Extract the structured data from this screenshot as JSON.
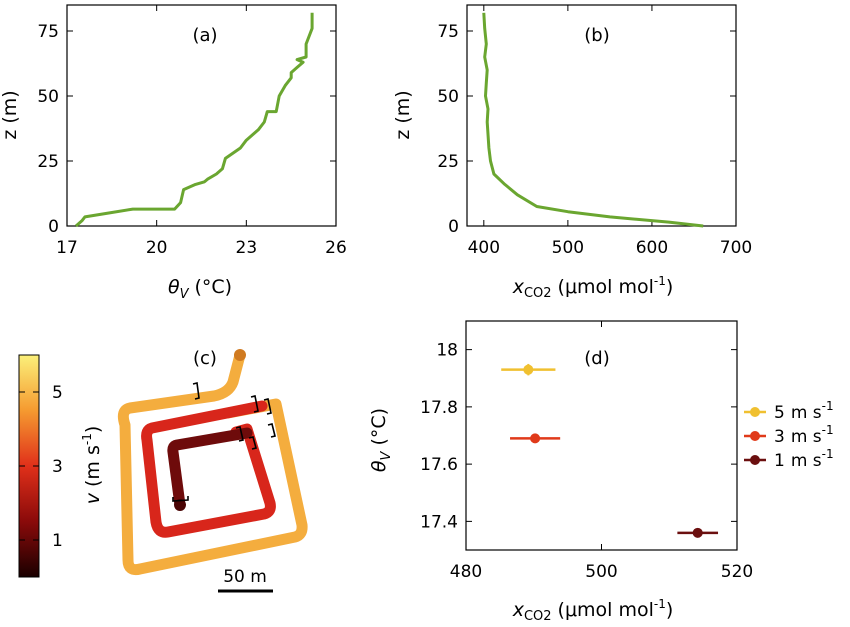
{
  "colors": {
    "profile": "#6aa630",
    "speed_5": "#f0c030",
    "speed_3": "#e03a1a",
    "speed_1": "#6b0f0f",
    "path_outer": "#f3a93c",
    "path_middle": "#d9261b",
    "path_inner": "#6a0a0a"
  },
  "chart_data": [
    {
      "panel": "(a)",
      "type": "line",
      "xlabel_sym": "θ",
      "xlabel_sub": "V",
      "xlabel_unit": "(°C)",
      "ylabel": "z (m)",
      "xlim": [
        17,
        26
      ],
      "ylim": [
        0,
        85
      ],
      "xticks": [
        "17",
        "20",
        "23",
        "26"
      ],
      "yticks": [
        "0",
        "25",
        "50",
        "75"
      ],
      "series": [
        {
          "x": [
            17.3,
            17.5,
            17.6,
            18.4,
            19.2,
            20.6,
            20.8,
            20.9,
            21.3,
            21.6,
            21.7,
            22.0,
            22.2,
            22.3,
            22.8,
            23.0,
            23.4,
            23.6,
            23.7,
            24.0,
            24.1,
            24.3,
            24.5,
            24.5,
            24.7,
            24.9,
            24.7,
            25.0,
            25.0,
            25.2,
            25.2
          ],
          "y": [
            0,
            2,
            3.5,
            5,
            6.5,
            6.5,
            9,
            14,
            16,
            17,
            18,
            20,
            22,
            26,
            30,
            33,
            37,
            40,
            44,
            44,
            50,
            54,
            57,
            59,
            61,
            63,
            64,
            65,
            70,
            76,
            82
          ]
        }
      ]
    },
    {
      "panel": "(b)",
      "type": "line",
      "xlabel_sym": "x",
      "xlabel_sub": "CO2",
      "xlabel_unit": "(μmol mol",
      "xlabel_sup": "-1",
      "xlabel_close": ")",
      "ylabel": "z (m)",
      "xlim": [
        380,
        700
      ],
      "ylim": [
        0,
        85
      ],
      "xticks": [
        "400",
        "500",
        "600",
        "700"
      ],
      "yticks": [
        "0",
        "25",
        "50",
        "75"
      ],
      "series": [
        {
          "x": [
            661,
            620,
            550,
            500,
            463,
            440,
            425,
            412,
            408,
            406,
            404,
            405,
            402,
            403,
            404,
            401,
            403,
            401,
            400
          ],
          "y": [
            0,
            1.5,
            3.5,
            5.5,
            7.5,
            12,
            16,
            20,
            25,
            30,
            40,
            45,
            50,
            55,
            60,
            65,
            70,
            76,
            82
          ]
        }
      ]
    },
    {
      "panel": "(c)",
      "type": "map",
      "colorbar_label_sym": "v",
      "colorbar_label_unit": "(m s",
      "colorbar_label_sup": "-1",
      "colorbar_label_close": ")",
      "colorbar_ticks": [
        "1",
        "3",
        "5"
      ],
      "colorbar_range": [
        0,
        6
      ],
      "scalebar": "50 m"
    },
    {
      "panel": "(d)",
      "type": "scatter",
      "xlabel_sym": "x",
      "xlabel_sub": "CO2",
      "xlabel_unit": "(μmol mol",
      "xlabel_sup": "-1",
      "xlabel_close": ")",
      "ylabel_sym": "θ",
      "ylabel_sub": "V",
      "ylabel_unit": "(°C)",
      "xlim": [
        480,
        520
      ],
      "ylim": [
        17.3,
        18.1
      ],
      "xticks": [
        "480",
        "500",
        "520"
      ],
      "yticks": [
        "17.4",
        "17.6",
        "17.8",
        "18"
      ],
      "legend_position": "right",
      "series": [
        {
          "name_num": "5",
          "name_unit": "m s",
          "name_sup": "-1",
          "x": 489.2,
          "y": 17.93,
          "xerr": 4.0,
          "yerr": 0.02
        },
        {
          "name_num": "3",
          "name_unit": "m s",
          "name_sup": "-1",
          "x": 490.2,
          "y": 17.69,
          "xerr": 3.7,
          "yerr": 0.015
        },
        {
          "name_num": "1",
          "name_unit": "m s",
          "name_sup": "-1",
          "x": 514.2,
          "y": 17.36,
          "xerr": 3.0,
          "yerr": 0.01
        }
      ]
    }
  ]
}
